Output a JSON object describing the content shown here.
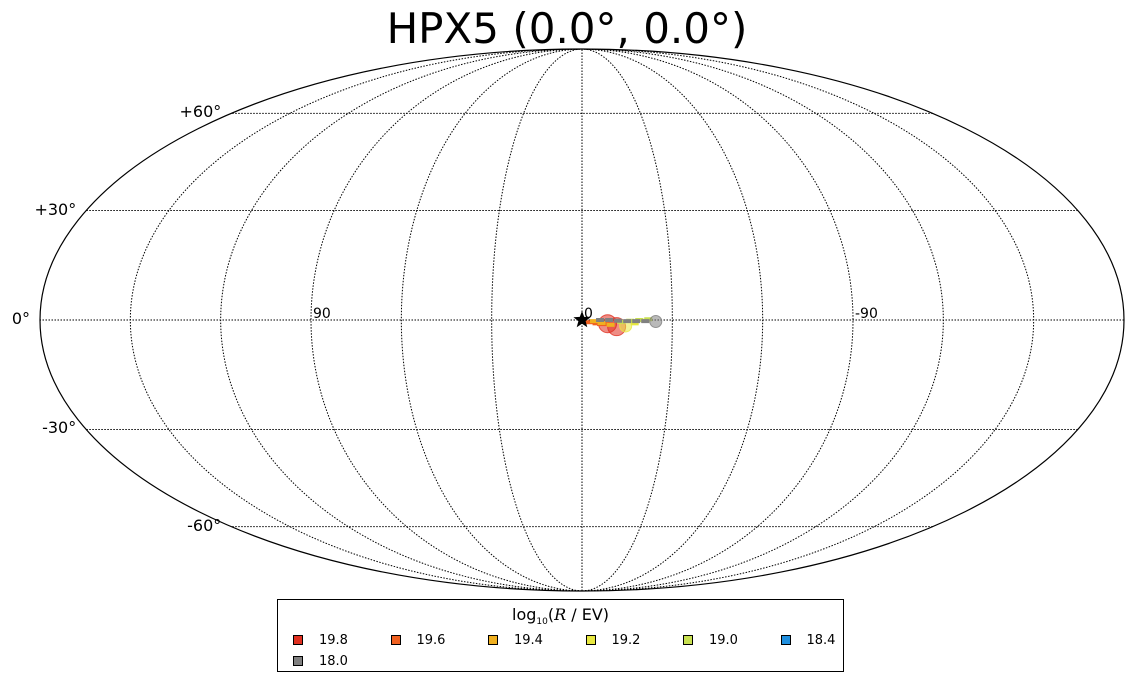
{
  "title": "HPX5 (0.0°, 0.0°)",
  "chart_data": {
    "type": "scatter",
    "projection": "mollweide",
    "center": [
      0.0,
      0.0
    ],
    "grid": true,
    "lat_labels": [
      {
        "lat": 60,
        "text": "+60°"
      },
      {
        "lat": 30,
        "text": "+30°"
      },
      {
        "lat": 0,
        "text": "0°"
      },
      {
        "lat": -30,
        "text": "-30°"
      },
      {
        "lat": -60,
        "text": "-60°"
      }
    ],
    "lon_labels": [
      {
        "lon": 90,
        "text": "90"
      },
      {
        "lon": 0,
        "text": "0"
      },
      {
        "lon": -90,
        "text": "-90"
      }
    ],
    "marker": {
      "lon": 0.0,
      "lat": 0.0,
      "symbol": "star"
    },
    "series": [
      {
        "name": "19.8",
        "color": "#e03020",
        "points": [
          [
            -8.5,
            -1.0,
            6
          ],
          [
            -11.5,
            -1.8,
            6
          ]
        ]
      },
      {
        "name": "19.6",
        "color": "#f06020",
        "points": [
          [
            -3.0,
            -0.6,
            3
          ],
          [
            -5.5,
            -0.9,
            3
          ],
          [
            -7.0,
            -1.1,
            3
          ]
        ]
      },
      {
        "name": "19.4",
        "color": "#f0b020",
        "points": [
          [
            -4.0,
            -0.3,
            2
          ],
          [
            -6.5,
            -0.8,
            2
          ],
          [
            -9.5,
            -1.3,
            2
          ]
        ]
      },
      {
        "name": "19.2",
        "color": "#e8e840",
        "points": [
          [
            -14.5,
            -1.6,
            4
          ],
          [
            -17.5,
            -0.9,
            2
          ],
          [
            -21.0,
            -0.2,
            2
          ]
        ]
      },
      {
        "name": "19.0",
        "color": "#c8e050",
        "points": [
          [
            -13.0,
            -0.5,
            2
          ],
          [
            -16.0,
            -0.2,
            2
          ],
          [
            -19.0,
            0.0,
            2
          ],
          [
            -22.0,
            0.2,
            2
          ]
        ]
      },
      {
        "name": "18.4",
        "color": "#2090e0",
        "points": []
      },
      {
        "name": "18.0",
        "color": "#808080",
        "points": [
          [
            -6.0,
            0.0,
            2
          ],
          [
            -9.0,
            0.0,
            2
          ],
          [
            -12.0,
            -0.2,
            2
          ],
          [
            -15.0,
            -0.3,
            2
          ],
          [
            -18.0,
            -0.3,
            2
          ],
          [
            -21.0,
            -0.3,
            2
          ],
          [
            -24.5,
            -0.4,
            4
          ]
        ]
      }
    ],
    "legend": {
      "title_prefix": "log",
      "title_sub": "10",
      "title_var": "R",
      "title_suffix": " / EV)",
      "placement": "bottom-center"
    }
  }
}
